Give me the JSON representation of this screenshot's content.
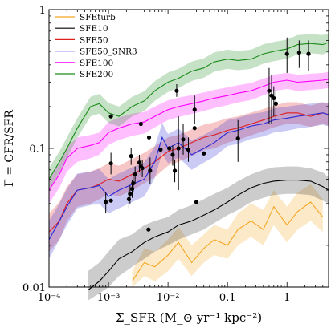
{
  "chart_data": {
    "type": "line",
    "xscale": "log",
    "yscale": "log",
    "xlim": [
      0.0001,
      5
    ],
    "ylim": [
      0.01,
      1
    ],
    "xlabel": "Σ_SFR (M_⊙ yr⁻¹ kpc⁻²)",
    "ylabel": "Γ = CFR/SFR",
    "x_tick_labels": [
      "10⁻⁴",
      "10⁻³",
      "10⁻²",
      "0.1",
      "1"
    ],
    "y_tick_labels": [
      "0.01",
      "0.1",
      "1"
    ],
    "legend": {
      "placement": "top-left"
    },
    "series": [
      {
        "name": "SFEturb",
        "color": "#f5a623",
        "band_opacity": 0.25,
        "x": [
          0.0025,
          0.004,
          0.006,
          0.01,
          0.015,
          0.025,
          0.04,
          0.06,
          0.1,
          0.15,
          0.25,
          0.4,
          0.6,
          1.0,
          1.5,
          2.5,
          4.0
        ],
        "y": [
          0.011,
          0.015,
          0.014,
          0.017,
          0.021,
          0.015,
          0.019,
          0.022,
          0.02,
          0.026,
          0.03,
          0.026,
          0.038,
          0.028,
          0.035,
          0.041,
          0.032
        ],
        "lower": [
          0.01,
          0.012,
          0.011,
          0.013,
          0.016,
          0.012,
          0.015,
          0.017,
          0.016,
          0.02,
          0.023,
          0.02,
          0.028,
          0.021,
          0.026,
          0.03,
          0.025
        ],
        "upper": [
          0.013,
          0.019,
          0.018,
          0.022,
          0.027,
          0.02,
          0.024,
          0.028,
          0.026,
          0.034,
          0.04,
          0.036,
          0.05,
          0.038,
          0.048,
          0.055,
          0.043
        ]
      },
      {
        "name": "SFE10",
        "color": "#000000",
        "band_opacity": 0.2,
        "x": [
          0.00045,
          0.0007,
          0.001,
          0.0015,
          0.0025,
          0.004,
          0.006,
          0.01,
          0.015,
          0.025,
          0.04,
          0.06,
          0.1,
          0.15,
          0.25,
          0.4,
          0.6,
          1.0,
          1.5,
          2.5,
          4.0,
          5.0
        ],
        "y": [
          0.0095,
          0.011,
          0.013,
          0.016,
          0.018,
          0.021,
          0.023,
          0.025,
          0.028,
          0.03,
          0.033,
          0.036,
          0.041,
          0.046,
          0.052,
          0.056,
          0.058,
          0.059,
          0.059,
          0.058,
          0.053,
          0.05
        ],
        "lower": [
          0.008,
          0.009,
          0.01,
          0.012,
          0.014,
          0.016,
          0.018,
          0.02,
          0.022,
          0.024,
          0.026,
          0.029,
          0.033,
          0.036,
          0.041,
          0.044,
          0.046,
          0.047,
          0.047,
          0.046,
          0.042,
          0.04
        ],
        "upper": [
          0.013,
          0.015,
          0.018,
          0.022,
          0.024,
          0.028,
          0.03,
          0.032,
          0.036,
          0.039,
          0.043,
          0.047,
          0.052,
          0.058,
          0.065,
          0.07,
          0.073,
          0.074,
          0.074,
          0.072,
          0.067,
          0.062
        ]
      },
      {
        "name": "SFE50",
        "color": "#e02020",
        "band_opacity": 0.25,
        "x": [
          0.0001,
          0.00015,
          0.0002,
          0.0003,
          0.0005,
          0.0007,
          0.001,
          0.0015,
          0.0025,
          0.004,
          0.006,
          0.01,
          0.015,
          0.025,
          0.04,
          0.06,
          0.1,
          0.15,
          0.25,
          0.4,
          0.6,
          1.0,
          1.5,
          2.5,
          4.0,
          5.0
        ],
        "y": [
          0.025,
          0.03,
          0.04,
          0.05,
          0.052,
          0.055,
          0.06,
          0.058,
          0.065,
          0.072,
          0.08,
          0.095,
          0.1,
          0.11,
          0.12,
          0.125,
          0.135,
          0.14,
          0.15,
          0.16,
          0.17,
          0.18,
          0.18,
          0.17,
          0.18,
          0.175
        ],
        "lower": [
          0.018,
          0.022,
          0.03,
          0.038,
          0.04,
          0.043,
          0.047,
          0.045,
          0.05,
          0.056,
          0.062,
          0.075,
          0.08,
          0.088,
          0.097,
          0.1,
          0.11,
          0.115,
          0.124,
          0.133,
          0.142,
          0.15,
          0.15,
          0.143,
          0.15,
          0.146
        ],
        "upper": [
          0.034,
          0.041,
          0.053,
          0.065,
          0.068,
          0.072,
          0.078,
          0.075,
          0.084,
          0.093,
          0.104,
          0.12,
          0.125,
          0.137,
          0.148,
          0.154,
          0.165,
          0.17,
          0.181,
          0.192,
          0.203,
          0.215,
          0.215,
          0.203,
          0.215,
          0.21
        ]
      },
      {
        "name": "SFE50_SNR3",
        "color": "#2a2ad8",
        "band_opacity": 0.25,
        "x": [
          0.0001,
          0.00015,
          0.0002,
          0.0003,
          0.0005,
          0.0007,
          0.001,
          0.0015,
          0.0025,
          0.004,
          0.006,
          0.008,
          0.01,
          0.015,
          0.025,
          0.04,
          0.06,
          0.1,
          0.15,
          0.25,
          0.4,
          0.6,
          1.0,
          1.5,
          2.5,
          4.0,
          5.0
        ],
        "y": [
          0.022,
          0.03,
          0.038,
          0.05,
          0.052,
          0.054,
          0.045,
          0.05,
          0.055,
          0.06,
          0.08,
          0.12,
          0.1,
          0.11,
          0.09,
          0.1,
          0.11,
          0.13,
          0.135,
          0.145,
          0.15,
          0.16,
          0.165,
          0.17,
          0.175,
          0.18,
          0.175
        ],
        "lower": [
          0.016,
          0.022,
          0.028,
          0.037,
          0.039,
          0.04,
          0.034,
          0.037,
          0.041,
          0.045,
          0.061,
          0.093,
          0.078,
          0.086,
          0.07,
          0.079,
          0.087,
          0.104,
          0.108,
          0.117,
          0.122,
          0.13,
          0.134,
          0.139,
          0.143,
          0.148,
          0.144
        ],
        "upper": [
          0.03,
          0.04,
          0.051,
          0.066,
          0.068,
          0.071,
          0.06,
          0.066,
          0.073,
          0.079,
          0.103,
          0.152,
          0.127,
          0.139,
          0.114,
          0.125,
          0.137,
          0.16,
          0.166,
          0.177,
          0.182,
          0.194,
          0.2,
          0.205,
          0.21,
          0.215,
          0.21
        ]
      },
      {
        "name": "SFE100",
        "color": "#ff00ff",
        "band_opacity": 0.25,
        "x": [
          0.0001,
          0.00015,
          0.0002,
          0.0003,
          0.0005,
          0.0007,
          0.001,
          0.0015,
          0.0025,
          0.004,
          0.006,
          0.01,
          0.015,
          0.025,
          0.04,
          0.06,
          0.1,
          0.15,
          0.25,
          0.4,
          0.6,
          1.0,
          1.5,
          2.5,
          4.0,
          5.0
        ],
        "y": [
          0.05,
          0.065,
          0.085,
          0.1,
          0.105,
          0.11,
          0.13,
          0.14,
          0.15,
          0.155,
          0.17,
          0.19,
          0.2,
          0.21,
          0.22,
          0.23,
          0.24,
          0.25,
          0.26,
          0.28,
          0.3,
          0.31,
          0.3,
          0.305,
          0.31,
          0.315
        ],
        "lower": [
          0.04,
          0.052,
          0.068,
          0.08,
          0.085,
          0.09,
          0.106,
          0.115,
          0.123,
          0.128,
          0.142,
          0.16,
          0.168,
          0.177,
          0.186,
          0.195,
          0.205,
          0.214,
          0.223,
          0.241,
          0.259,
          0.268,
          0.259,
          0.264,
          0.268,
          0.272
        ],
        "upper": [
          0.06,
          0.078,
          0.102,
          0.12,
          0.125,
          0.13,
          0.155,
          0.167,
          0.178,
          0.183,
          0.2,
          0.222,
          0.232,
          0.242,
          0.253,
          0.264,
          0.275,
          0.285,
          0.296,
          0.318,
          0.34,
          0.35,
          0.34,
          0.345,
          0.35,
          0.356
        ]
      },
      {
        "name": "SFE200",
        "color": "#1a8c1a",
        "band_opacity": 0.25,
        "x": [
          0.0001,
          0.00015,
          0.0002,
          0.0003,
          0.0005,
          0.0007,
          0.001,
          0.0015,
          0.0025,
          0.004,
          0.006,
          0.01,
          0.015,
          0.025,
          0.04,
          0.06,
          0.1,
          0.15,
          0.25,
          0.4,
          0.6,
          1.0,
          1.5,
          2.5,
          4.0,
          5.0
        ],
        "y": [
          0.06,
          0.08,
          0.1,
          0.14,
          0.2,
          0.21,
          0.18,
          0.17,
          0.2,
          0.22,
          0.26,
          0.3,
          0.32,
          0.36,
          0.38,
          0.42,
          0.44,
          0.43,
          0.44,
          0.48,
          0.5,
          0.52,
          0.56,
          0.57,
          0.56,
          0.58
        ],
        "lower": [
          0.05,
          0.067,
          0.085,
          0.12,
          0.17,
          0.178,
          0.153,
          0.144,
          0.17,
          0.186,
          0.22,
          0.255,
          0.272,
          0.306,
          0.323,
          0.357,
          0.374,
          0.366,
          0.374,
          0.408,
          0.425,
          0.442,
          0.476,
          0.485,
          0.476,
          0.493
        ],
        "upper": [
          0.072,
          0.095,
          0.12,
          0.165,
          0.235,
          0.247,
          0.212,
          0.2,
          0.235,
          0.258,
          0.305,
          0.352,
          0.375,
          0.422,
          0.445,
          0.492,
          0.515,
          0.504,
          0.515,
          0.562,
          0.585,
          0.608,
          0.655,
          0.666,
          0.655,
          0.678
        ]
      }
    ],
    "observations": {
      "color": "#000000",
      "points": [
        {
          "x": 0.0011,
          "y": 0.17
        },
        {
          "x": 0.0009,
          "y": 0.041,
          "y_lo": 0.034,
          "y_hi": 0.048
        },
        {
          "x": 0.0011,
          "y": 0.078,
          "y_lo": 0.065,
          "y_hi": 0.093
        },
        {
          "x": 0.0011,
          "y": 0.042
        },
        {
          "x": 0.0022,
          "y": 0.043,
          "y_lo": 0.037,
          "y_hi": 0.05
        },
        {
          "x": 0.0023,
          "y": 0.047,
          "y_lo": 0.04,
          "y_hi": 0.054
        },
        {
          "x": 0.0025,
          "y": 0.051,
          "y_lo": 0.044,
          "y_hi": 0.059
        },
        {
          "x": 0.0026,
          "y": 0.056,
          "y_lo": 0.048,
          "y_hi": 0.064
        },
        {
          "x": 0.0028,
          "y": 0.065,
          "y_lo": 0.056,
          "y_hi": 0.074
        },
        {
          "x": 0.0024,
          "y": 0.088,
          "y_lo": 0.076,
          "y_hi": 0.1
        },
        {
          "x": 0.0033,
          "y": 0.079,
          "y_lo": 0.068,
          "y_hi": 0.09
        },
        {
          "x": 0.0035,
          "y": 0.074,
          "y_lo": 0.064,
          "y_hi": 0.085
        },
        {
          "x": 0.0037,
          "y": 0.072,
          "y_lo": 0.062,
          "y_hi": 0.083
        },
        {
          "x": 0.0035,
          "y": 0.15
        },
        {
          "x": 0.0048,
          "y": 0.12,
          "y_lo": 0.09,
          "y_hi": 0.16
        },
        {
          "x": 0.005,
          "y": 0.069,
          "y_lo": 0.055,
          "y_hi": 0.086
        },
        {
          "x": 0.0047,
          "y": 0.026
        },
        {
          "x": 0.0075,
          "y": 0.098
        },
        {
          "x": 0.0105,
          "y": 0.1
        },
        {
          "x": 0.012,
          "y": 0.09,
          "y_lo": 0.075,
          "y_hi": 0.105
        },
        {
          "x": 0.013,
          "y": 0.069,
          "y_lo": 0.057,
          "y_hi": 0.083
        },
        {
          "x": 0.014,
          "y": 0.26,
          "y_lo": 0.235,
          "y_hi": 0.29
        },
        {
          "x": 0.015,
          "y": 0.1,
          "y_lo": 0.05,
          "y_hi": 0.17
        },
        {
          "x": 0.018,
          "y": 0.116,
          "y_lo": 0.09,
          "y_hi": 0.15
        },
        {
          "x": 0.022,
          "y": 0.098,
          "y_lo": 0.08,
          "y_hi": 0.12
        },
        {
          "x": 0.028,
          "y": 0.19,
          "y_lo": 0.15,
          "y_hi": 0.24
        },
        {
          "x": 0.028,
          "y": 0.14
        },
        {
          "x": 0.03,
          "y": 0.041
        },
        {
          "x": 0.04,
          "y": 0.092
        },
        {
          "x": 0.15,
          "y": 0.118,
          "y_lo": 0.08,
          "y_hi": 0.16
        },
        {
          "x": 0.5,
          "y": 0.26,
          "y_lo": 0.15,
          "y_hi": 0.38
        },
        {
          "x": 0.55,
          "y": 0.24,
          "y_lo": 0.15,
          "y_hi": 0.34
        },
        {
          "x": 0.6,
          "y": 0.23,
          "y_lo": 0.17,
          "y_hi": 0.28
        },
        {
          "x": 0.65,
          "y": 0.21,
          "y_lo": 0.16,
          "y_hi": 0.26
        },
        {
          "x": 1.0,
          "y": 0.48,
          "y_lo": 0.35,
          "y_hi": 0.63
        },
        {
          "x": 1.6,
          "y": 0.49,
          "y_lo": 0.38,
          "y_hi": 0.6
        },
        {
          "x": 2.3,
          "y": 0.48,
          "y_lo": 0.36,
          "y_hi": 0.6
        }
      ]
    }
  }
}
